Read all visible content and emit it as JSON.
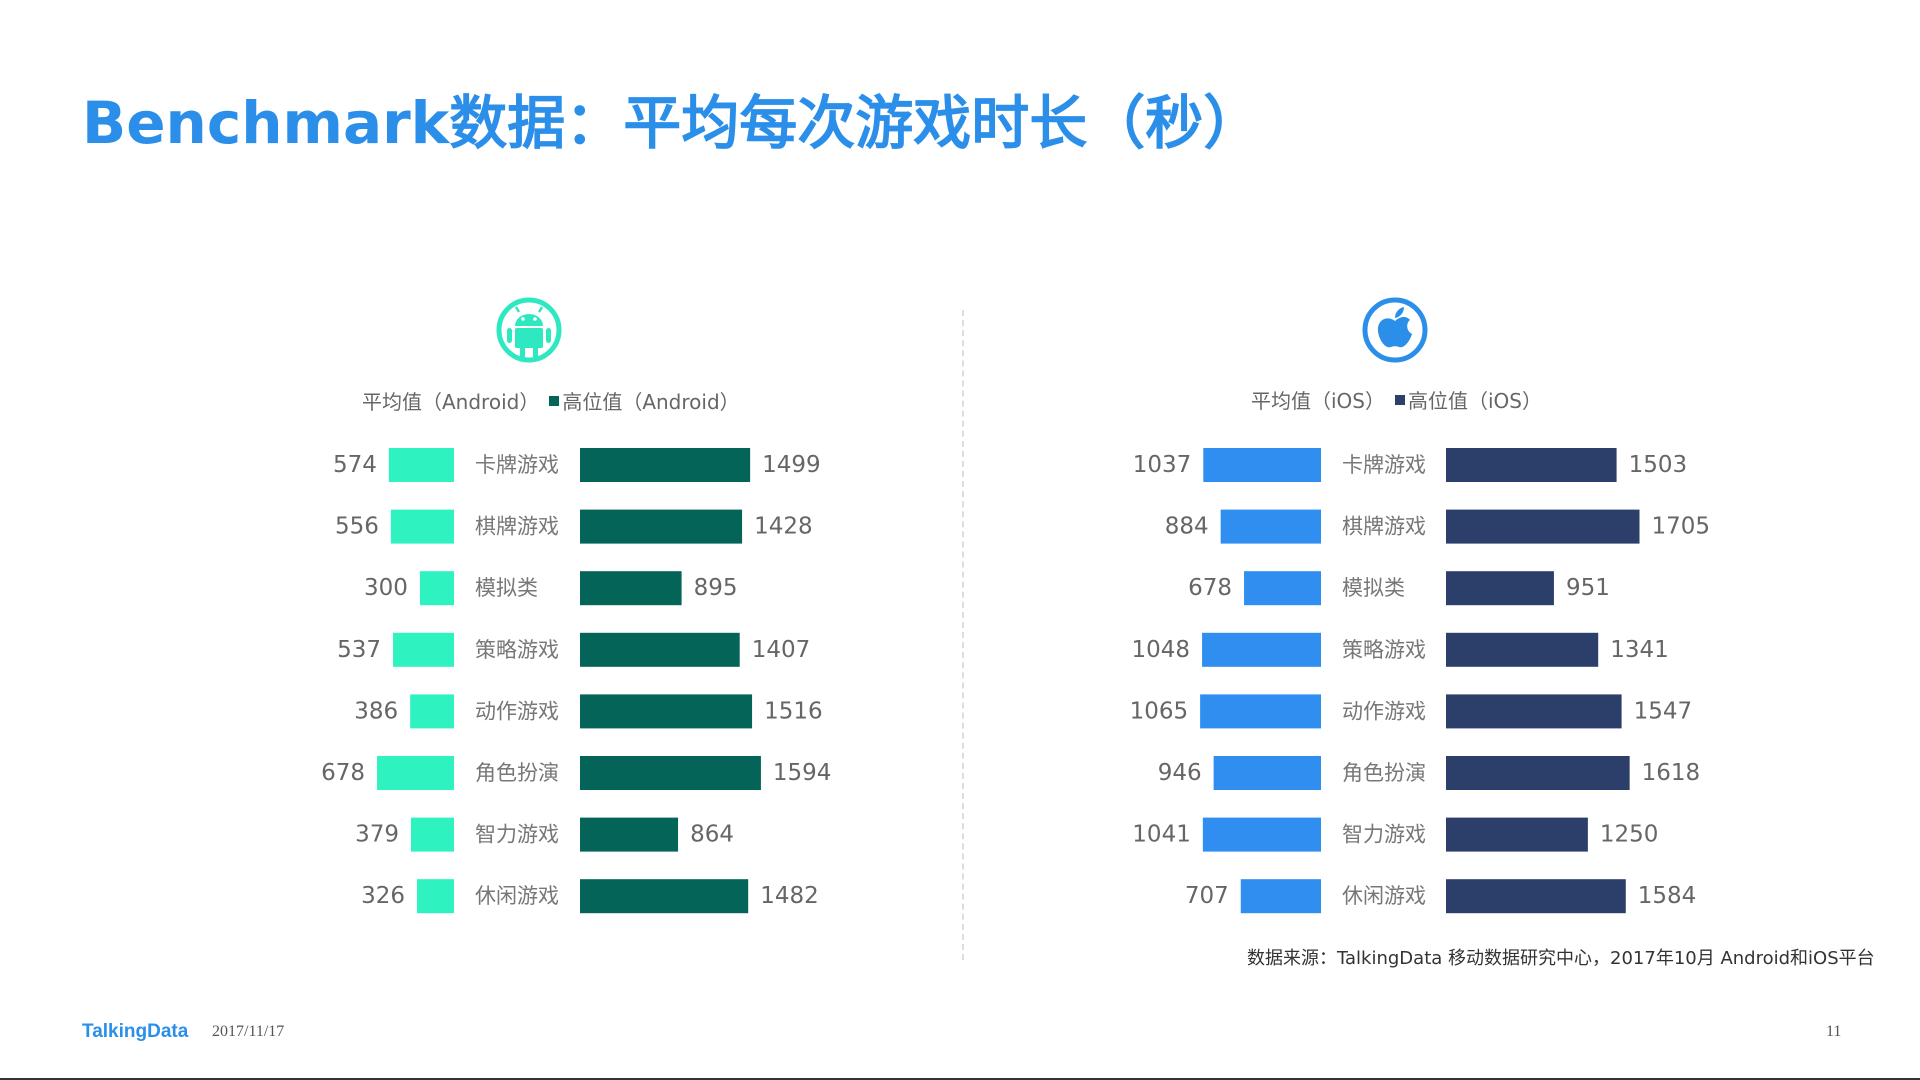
{
  "title": "Benchmark数据：平均每次游戏时长（秒）",
  "colors": {
    "title": "#2b8fea",
    "android_avg": "#2ef2c0",
    "android_median": "#046457",
    "ios_avg": "#2f8ef0",
    "ios_median": "#2c3f6b",
    "android_icon": "#2ee8c2",
    "ios_icon": "#2b8fea",
    "value_text": "#666666",
    "category_text": "#777777"
  },
  "icons": {
    "android": "android-icon",
    "ios": "apple-icon"
  },
  "chart_data": [
    {
      "type": "bar",
      "platform": "Android",
      "categories": [
        "卡牌游戏",
        "棋牌游戏",
        "模拟类",
        "策略游戏",
        "动作游戏",
        "角色扮演",
        "智力游戏",
        "休闲游戏"
      ],
      "series": [
        {
          "name": "平均值（Android）",
          "values": [
            574,
            556,
            300,
            537,
            386,
            678,
            379,
            326
          ]
        },
        {
          "name": "高位值（Android）",
          "values": [
            1499,
            1428,
            895,
            1407,
            1516,
            1594,
            864,
            1482
          ]
        }
      ],
      "legend": "top",
      "grid": false
    },
    {
      "type": "bar",
      "platform": "iOS",
      "categories": [
        "卡牌游戏",
        "棋牌游戏",
        "模拟类",
        "策略游戏",
        "动作游戏",
        "角色扮演",
        "智力游戏",
        "休闲游戏"
      ],
      "series": [
        {
          "name": "平均值（iOS）",
          "values": [
            1037,
            884,
            678,
            1048,
            1065,
            946,
            1041,
            707
          ]
        },
        {
          "name": "高位值（iOS）",
          "values": [
            1503,
            1705,
            951,
            1341,
            1547,
            1618,
            1250,
            1584
          ]
        }
      ],
      "legend": "top",
      "grid": false
    }
  ],
  "source": "数据来源：TalkingData 移动数据研究中心，2017年10月 Android和iOS平台",
  "footer": {
    "brand": "TalkingData",
    "date": "2017/11/17",
    "page": "11"
  }
}
